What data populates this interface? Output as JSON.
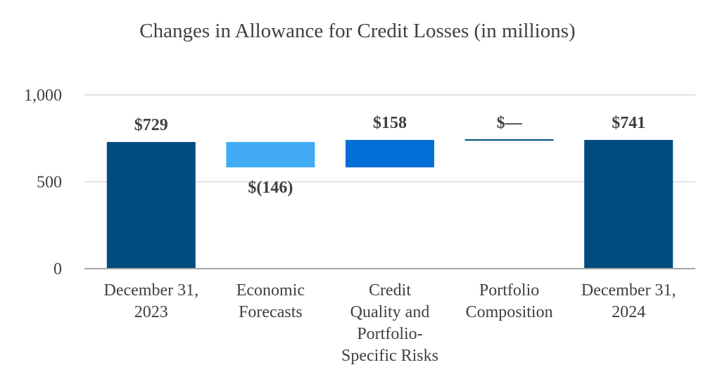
{
  "chart_data": {
    "type": "waterfall",
    "title": "Changes in Allowance for Credit Losses (in millions)",
    "ylim": [
      0,
      1000
    ],
    "yticks": [
      0,
      500,
      1000
    ],
    "ytick_labels": [
      "0",
      "500",
      "1,000"
    ],
    "grid": true,
    "steps": [
      {
        "category": [
          "December 31,",
          "2023"
        ],
        "kind": "total",
        "value": 729,
        "label": "$729",
        "color": "#004b80"
      },
      {
        "category": [
          "Economic",
          "Forecasts"
        ],
        "kind": "delta",
        "value": -146,
        "label": "$(146)",
        "color": "#41abf5"
      },
      {
        "category": [
          "Credit",
          "Quality and",
          "Portfolio-",
          "Specific Risks"
        ],
        "kind": "delta",
        "value": 158,
        "label": "$158",
        "color": "#006ed4"
      },
      {
        "category": [
          "Portfolio",
          "Composition"
        ],
        "kind": "delta",
        "value": 0,
        "label": "$—",
        "color": "#004b80"
      },
      {
        "category": [
          "December 31,",
          "2024"
        ],
        "kind": "total",
        "value": 741,
        "label": "$741",
        "color": "#004b80"
      }
    ]
  }
}
